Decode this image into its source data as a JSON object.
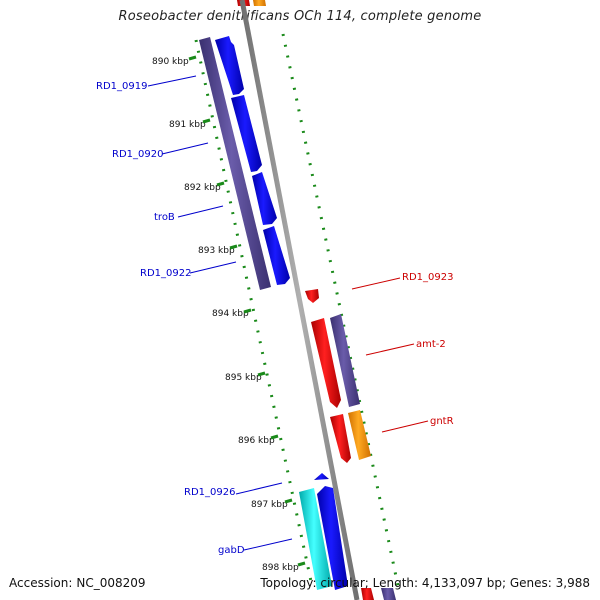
{
  "title": "Roseobacter denitrificans OCh 114, complete genome",
  "footer": {
    "accession_label": "Accession:",
    "accession_value": "NC_008209",
    "summary": "Topology: circular; Length: 4,133,097 bp; Genes: 3,988"
  },
  "scale": {
    "ticks": [
      {
        "kbp": 890,
        "label": "890 kbp"
      },
      {
        "kbp": 891,
        "label": "891 kbp"
      },
      {
        "kbp": 892,
        "label": "892 kbp"
      },
      {
        "kbp": 893,
        "label": "893 kbp"
      },
      {
        "kbp": 894,
        "label": "894 kbp"
      },
      {
        "kbp": 895,
        "label": "895 kbp"
      },
      {
        "kbp": 896,
        "label": "896 kbp"
      },
      {
        "kbp": 897,
        "label": "897 kbp"
      },
      {
        "kbp": 898,
        "label": "898 kbp"
      }
    ]
  },
  "gene_labels": {
    "forward": [
      {
        "name": "RD1_0919",
        "color": "#0000cc"
      },
      {
        "name": "RD1_0920",
        "color": "#0000cc"
      },
      {
        "name": "troB",
        "color": "#0000cc"
      },
      {
        "name": "RD1_0922",
        "color": "#0000cc"
      },
      {
        "name": "RD1_0926",
        "color": "#0000cc"
      },
      {
        "name": "gabD",
        "color": "#0000cc"
      }
    ],
    "reverse": [
      {
        "name": "RD1_0923",
        "color": "#cc0000"
      },
      {
        "name": "amt-2",
        "color": "#cc0000"
      },
      {
        "name": "gntR",
        "color": "#cc0000"
      }
    ]
  },
  "colors": {
    "backbone": "#909090",
    "tick_dots": "#1a8a1a",
    "forward_cds": "#0000ee",
    "forward_gene": "#4a3f8a",
    "reverse_cds": "#ee0000",
    "reverse_gene": "#5a4a99",
    "regulator": "#ff9900",
    "other_cds": "#22dddd"
  }
}
